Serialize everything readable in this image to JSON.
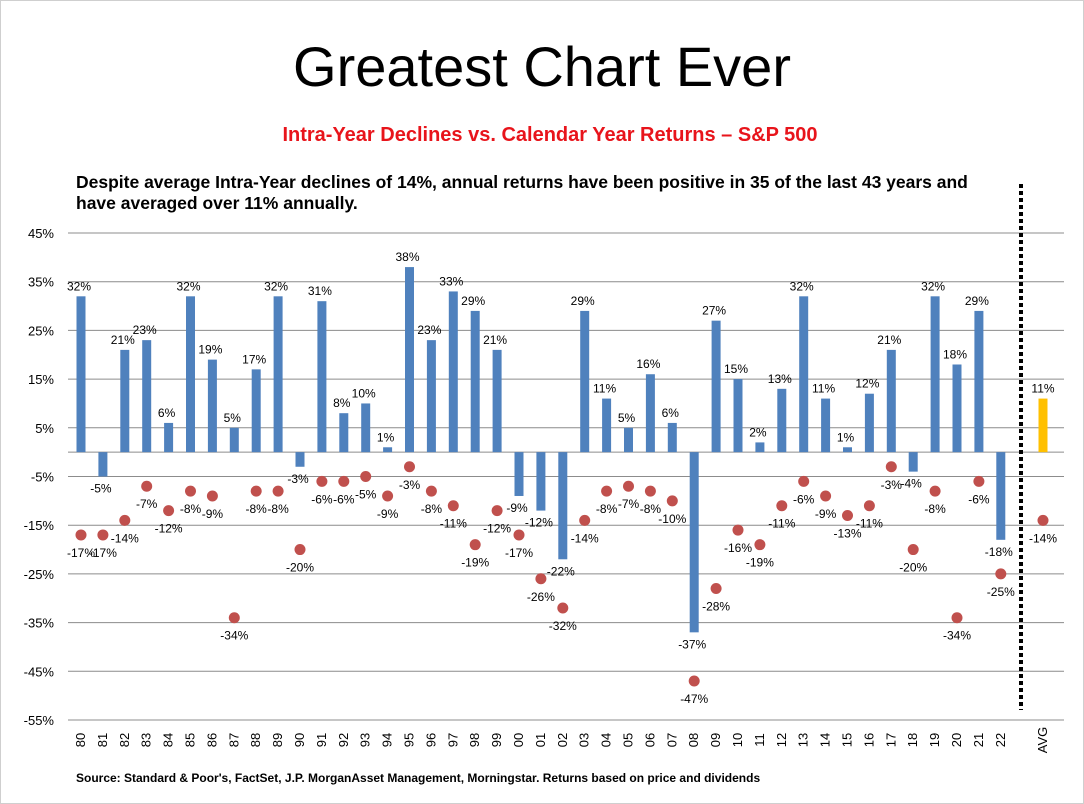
{
  "page": {
    "title": "Greatest Chart Ever",
    "subtitle": "Intra-Year Declines vs. Calendar Year Returns – S&P 500",
    "note": "Despite average Intra-Year declines of 14%, annual returns have been positive in 35 of the last 43 years and have averaged over 11% annually.",
    "source": "Source: Standard & Poor's, FactSet, J.P. MorganAsset Management, Morningstar.  Returns based on price and dividends"
  },
  "chart_data": {
    "type": "bar",
    "title": "",
    "xlabel": "",
    "ylabel": "",
    "ylim": [
      -55,
      45
    ],
    "yticks": [
      45,
      35,
      25,
      15,
      5,
      -5,
      -15,
      -25,
      -35,
      -45,
      -55
    ],
    "ytick_labels": [
      "45%",
      "35%",
      "25%",
      "15%",
      "5%",
      "-5%",
      "-15%",
      "-25%",
      "-35%",
      "-45%",
      "-55%"
    ],
    "grid": true,
    "categories": [
      "80",
      "81",
      "82",
      "83",
      "84",
      "85",
      "86",
      "87",
      "88",
      "89",
      "90",
      "91",
      "92",
      "93",
      "94",
      "95",
      "96",
      "97",
      "98",
      "99",
      "00",
      "01",
      "02",
      "03",
      "04",
      "05",
      "06",
      "07",
      "08",
      "09",
      "10",
      "11",
      "12",
      "13",
      "14",
      "15",
      "16",
      "17",
      "18",
      "19",
      "20",
      "21",
      "22",
      "AVG"
    ],
    "series": [
      {
        "kind": "bar",
        "color": "#4f81bd",
        "highlight_color": "#ffc000",
        "values": [
          32,
          -5,
          21,
          23,
          6,
          32,
          19,
          5,
          17,
          32,
          -3,
          31,
          8,
          10,
          1,
          38,
          23,
          33,
          29,
          21,
          -9,
          -12,
          -22,
          29,
          11,
          5,
          16,
          6,
          -37,
          27,
          15,
          2,
          13,
          32,
          11,
          1,
          12,
          21,
          -4,
          32,
          18,
          29,
          -18,
          11
        ],
        "labels": [
          "32%",
          "-5%",
          "21%",
          "23%",
          "6%",
          "32%",
          "19%",
          "5%",
          "17%",
          "32%",
          "-3%",
          "31%",
          "8%",
          "10%",
          "1%",
          "38%",
          "23%",
          "33%",
          "29%",
          "21%",
          "-9%",
          "-12%",
          "-22%",
          "29%",
          "11%",
          "5%",
          "16%",
          "6%",
          "-37%",
          "27%",
          "15%",
          "2%",
          "13%",
          "32%",
          "11%",
          "1%",
          "12%",
          "21%",
          "-4%",
          "32%",
          "18%",
          "29%",
          "-18%",
          "11%"
        ]
      },
      {
        "kind": "scatter",
        "color": "#c0504d",
        "values": [
          -17,
          -17,
          -14,
          -7,
          -12,
          -8,
          -9,
          -34,
          -8,
          -8,
          -20,
          -6,
          -6,
          -5,
          -9,
          -3,
          -8,
          -11,
          -19,
          -12,
          -17,
          -26,
          -32,
          -14,
          -8,
          -7,
          -8,
          -10,
          -47,
          -28,
          -16,
          -19,
          -11,
          -6,
          -9,
          -13,
          -11,
          -3,
          -20,
          -8,
          -34,
          -6,
          -25,
          -14
        ],
        "labels": [
          "-17%",
          "-17%",
          "-14%",
          "-7%",
          "-12%",
          "-8%",
          "-9%",
          "-34%",
          "-8%",
          "-8%",
          "-20%",
          "-6%",
          "-6%",
          "-5%",
          "-9%",
          "-3%",
          "-8%",
          "-11%",
          "-19%",
          "-12%",
          "-17%",
          "-26%",
          "-32%",
          "-14%",
          "-8%",
          "-7%",
          "-8%",
          "-10%",
          "-47%",
          "-28%",
          "-16%",
          "-19%",
          "-11%",
          "-6%",
          "-9%",
          "-13%",
          "-11%",
          "-3%",
          "-20%",
          "-8%",
          "-34%",
          "-6%",
          "-25%",
          "-14%"
        ]
      }
    ],
    "separator": "dotted vertical line before AVG"
  }
}
